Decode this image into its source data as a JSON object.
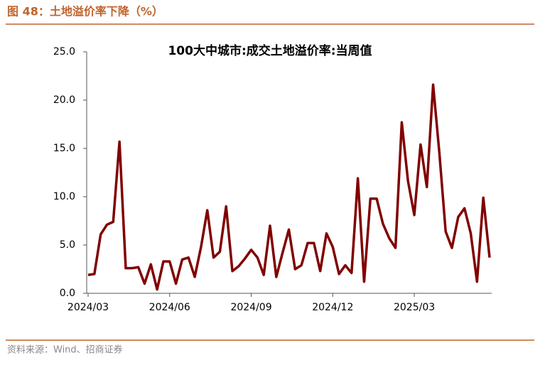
{
  "header": {
    "title": "图 48：土地溢价率下降（%）"
  },
  "chart_data": {
    "type": "line",
    "title": "100大中城市:成交土地溢价率:当周值",
    "categories": [
      "2024/03",
      null,
      null,
      null,
      null,
      null,
      null,
      null,
      null,
      null,
      null,
      null,
      null,
      "2024/06",
      null,
      null,
      null,
      null,
      null,
      null,
      null,
      null,
      null,
      null,
      null,
      null,
      "2024/09",
      null,
      null,
      null,
      null,
      null,
      null,
      null,
      null,
      null,
      null,
      null,
      null,
      "2024/12",
      null,
      null,
      null,
      null,
      null,
      null,
      null,
      null,
      null,
      null,
      null,
      null,
      "2025/03",
      null,
      null,
      null,
      null,
      null,
      null,
      null,
      null,
      null,
      null,
      null,
      null
    ],
    "values": [
      1.9,
      2.0,
      6.1,
      7.1,
      7.4,
      15.7,
      2.6,
      2.6,
      2.7,
      1.0,
      3.0,
      0.4,
      3.3,
      3.3,
      1.0,
      3.5,
      3.7,
      1.7,
      4.8,
      8.6,
      3.7,
      4.3,
      9.0,
      2.3,
      2.8,
      3.6,
      4.5,
      3.7,
      1.9,
      7.0,
      1.7,
      4.2,
      6.6,
      2.5,
      2.9,
      5.2,
      5.2,
      2.3,
      6.2,
      4.8,
      2.0,
      2.9,
      2.1,
      11.9,
      1.2,
      9.8,
      9.8,
      7.2,
      5.7,
      4.7,
      17.7,
      11.6,
      8.1,
      15.4,
      11.0,
      21.6,
      14.5,
      6.4,
      4.7,
      7.9,
      8.8,
      6.2,
      1.2,
      9.9,
      3.7
    ],
    "color": "#800000",
    "ylim": [
      0,
      25
    ],
    "yticks": [
      {
        "value": 0,
        "label": "0.0"
      },
      {
        "value": 5,
        "label": "5.0"
      },
      {
        "value": 10,
        "label": "10.0"
      },
      {
        "value": 15,
        "label": "15.0"
      },
      {
        "value": 20,
        "label": "20.0"
      },
      {
        "value": 25,
        "label": "25.0"
      }
    ],
    "grid": false
  },
  "source": "资料来源：Wind、招商证券"
}
